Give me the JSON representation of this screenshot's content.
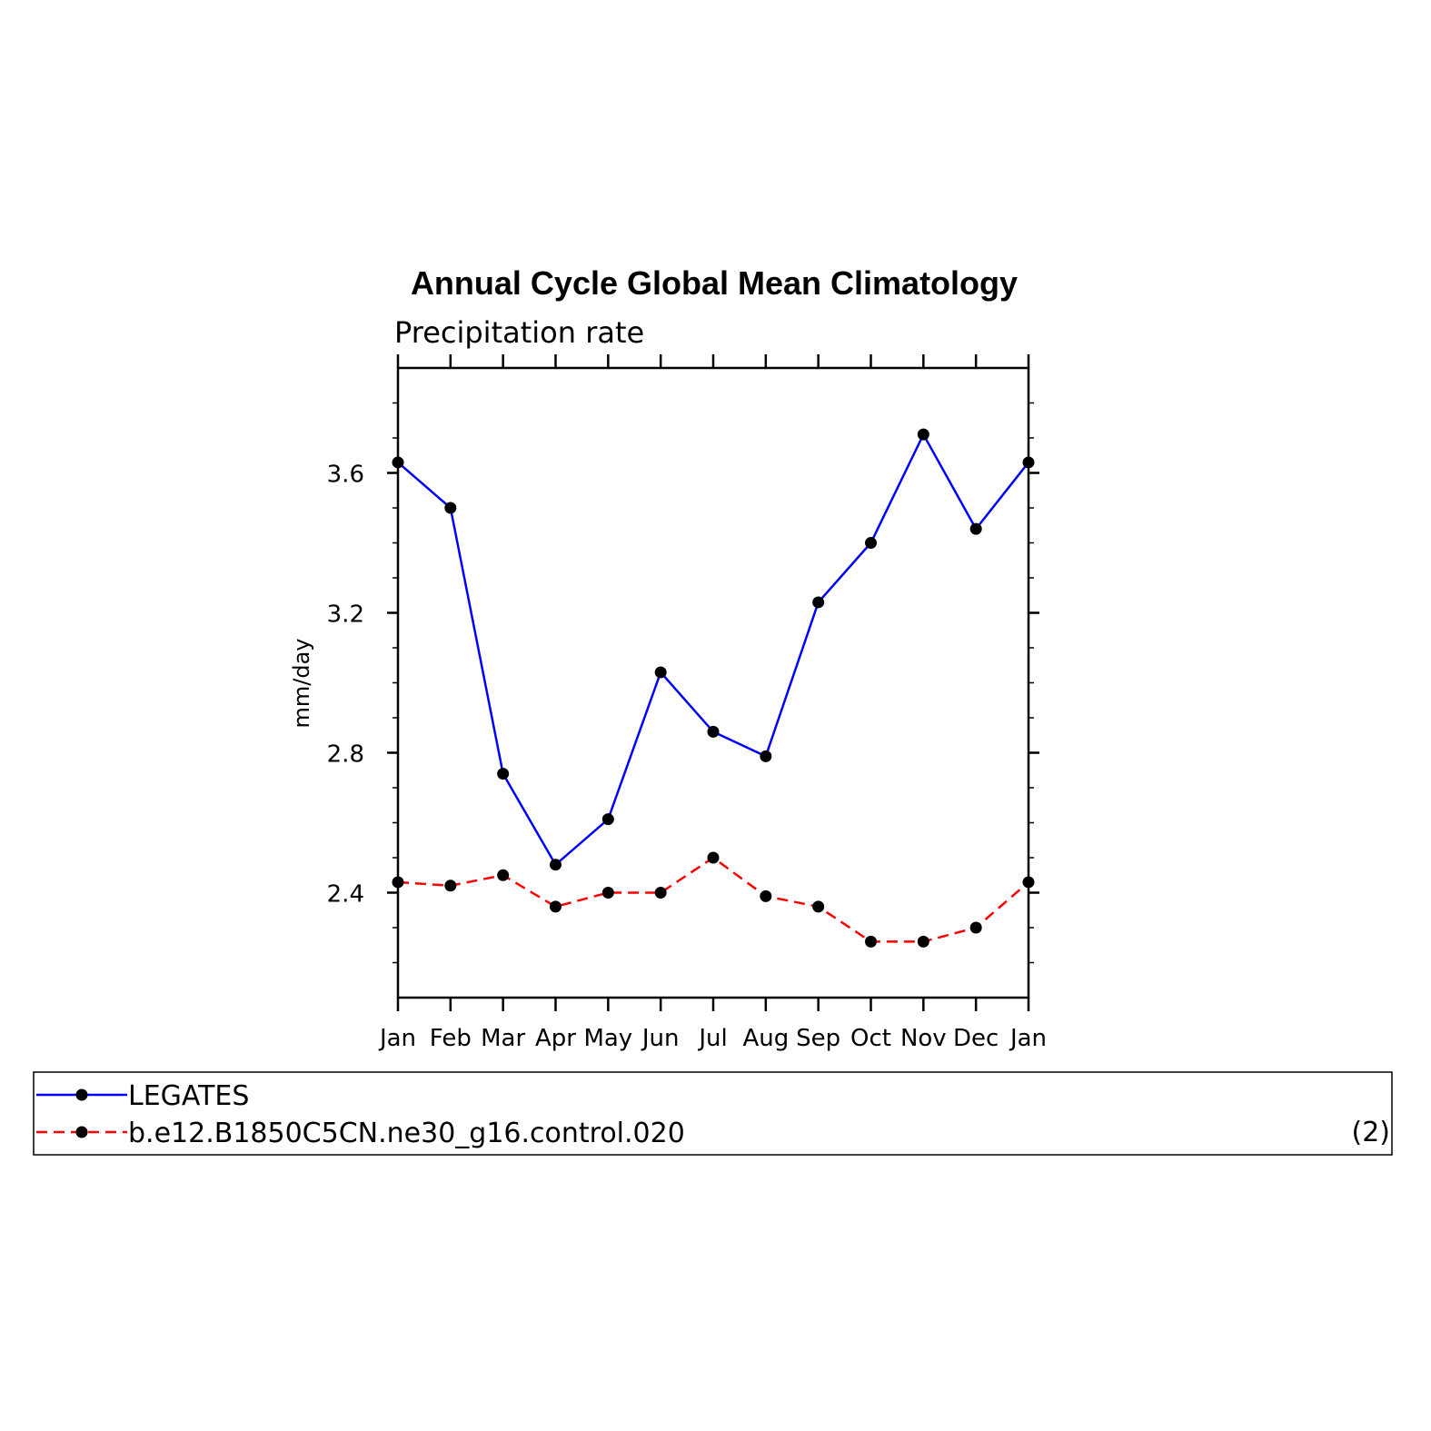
{
  "chart_data": {
    "type": "line",
    "title": "Annual Cycle Global Mean Climatology",
    "subtitle": "Precipitation rate",
    "ylabel": "mm/day",
    "xlabel": "",
    "categories": [
      "Jan",
      "Feb",
      "Mar",
      "Apr",
      "May",
      "Jun",
      "Jul",
      "Aug",
      "Sep",
      "Oct",
      "Nov",
      "Dec",
      "Jan"
    ],
    "ylim": [
      2.1,
      3.9
    ],
    "yticks": [
      2.4,
      2.8,
      3.2,
      3.6
    ],
    "ytick_labels": [
      "2.4",
      "2.8",
      "3.2",
      "3.6"
    ],
    "grid": false,
    "legend_position": "bottom",
    "legend_note": "(2)",
    "series": [
      {
        "name": "LEGATES",
        "color": "#0000ff",
        "line_style": "solid",
        "marker": "filled-circle",
        "values": [
          3.63,
          3.5,
          2.74,
          2.48,
          2.61,
          3.03,
          2.86,
          2.79,
          3.23,
          3.4,
          3.71,
          3.44,
          3.63
        ]
      },
      {
        "name": "b.e12.B1850C5CN.ne30_g16.control.020",
        "color": "#ff0000",
        "line_style": "dashed",
        "marker": "filled-circle",
        "values": [
          2.43,
          2.42,
          2.45,
          2.36,
          2.4,
          2.4,
          2.5,
          2.39,
          2.36,
          2.26,
          2.26,
          2.3,
          2.43
        ]
      }
    ]
  }
}
